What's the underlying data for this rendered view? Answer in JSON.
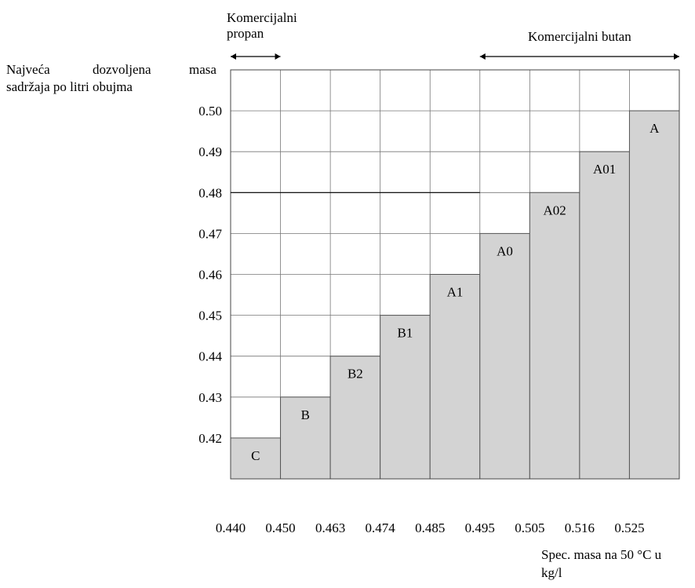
{
  "chart_data": {
    "type": "bar",
    "ylabel_parts": [
      "Najveća",
      "dozvoljena",
      "masa"
    ],
    "ylabel_line2": "sadržaja po litri obujma",
    "xlabel_line1": "Spec. masa na 50 °C u",
    "xlabel_line2": "kg/l",
    "x_ticks": [
      "0.440",
      "0.450",
      "0.463",
      "0.474",
      "0.485",
      "0.495",
      "0.505",
      "0.516",
      "0.525"
    ],
    "y_ticks": [
      "0.42",
      "0.43",
      "0.44",
      "0.45",
      "0.46",
      "0.47",
      "0.48",
      "0.49",
      "0.50"
    ],
    "categories": [
      "C",
      "B",
      "B2",
      "B1",
      "A1",
      "A0",
      "A02",
      "A01",
      "A"
    ],
    "values": [
      0.42,
      0.43,
      0.44,
      0.45,
      0.46,
      0.47,
      0.48,
      0.49,
      0.5
    ],
    "ranges": [
      {
        "label_lines": [
          "Komercijalni",
          "propan"
        ],
        "from_index": 0,
        "to_index": 0
      },
      {
        "label_lines": [
          "Komercijalni butan"
        ],
        "from_index": 5,
        "to_index": 8
      }
    ],
    "ylim": [
      0.41,
      0.51
    ],
    "grid": true
  }
}
